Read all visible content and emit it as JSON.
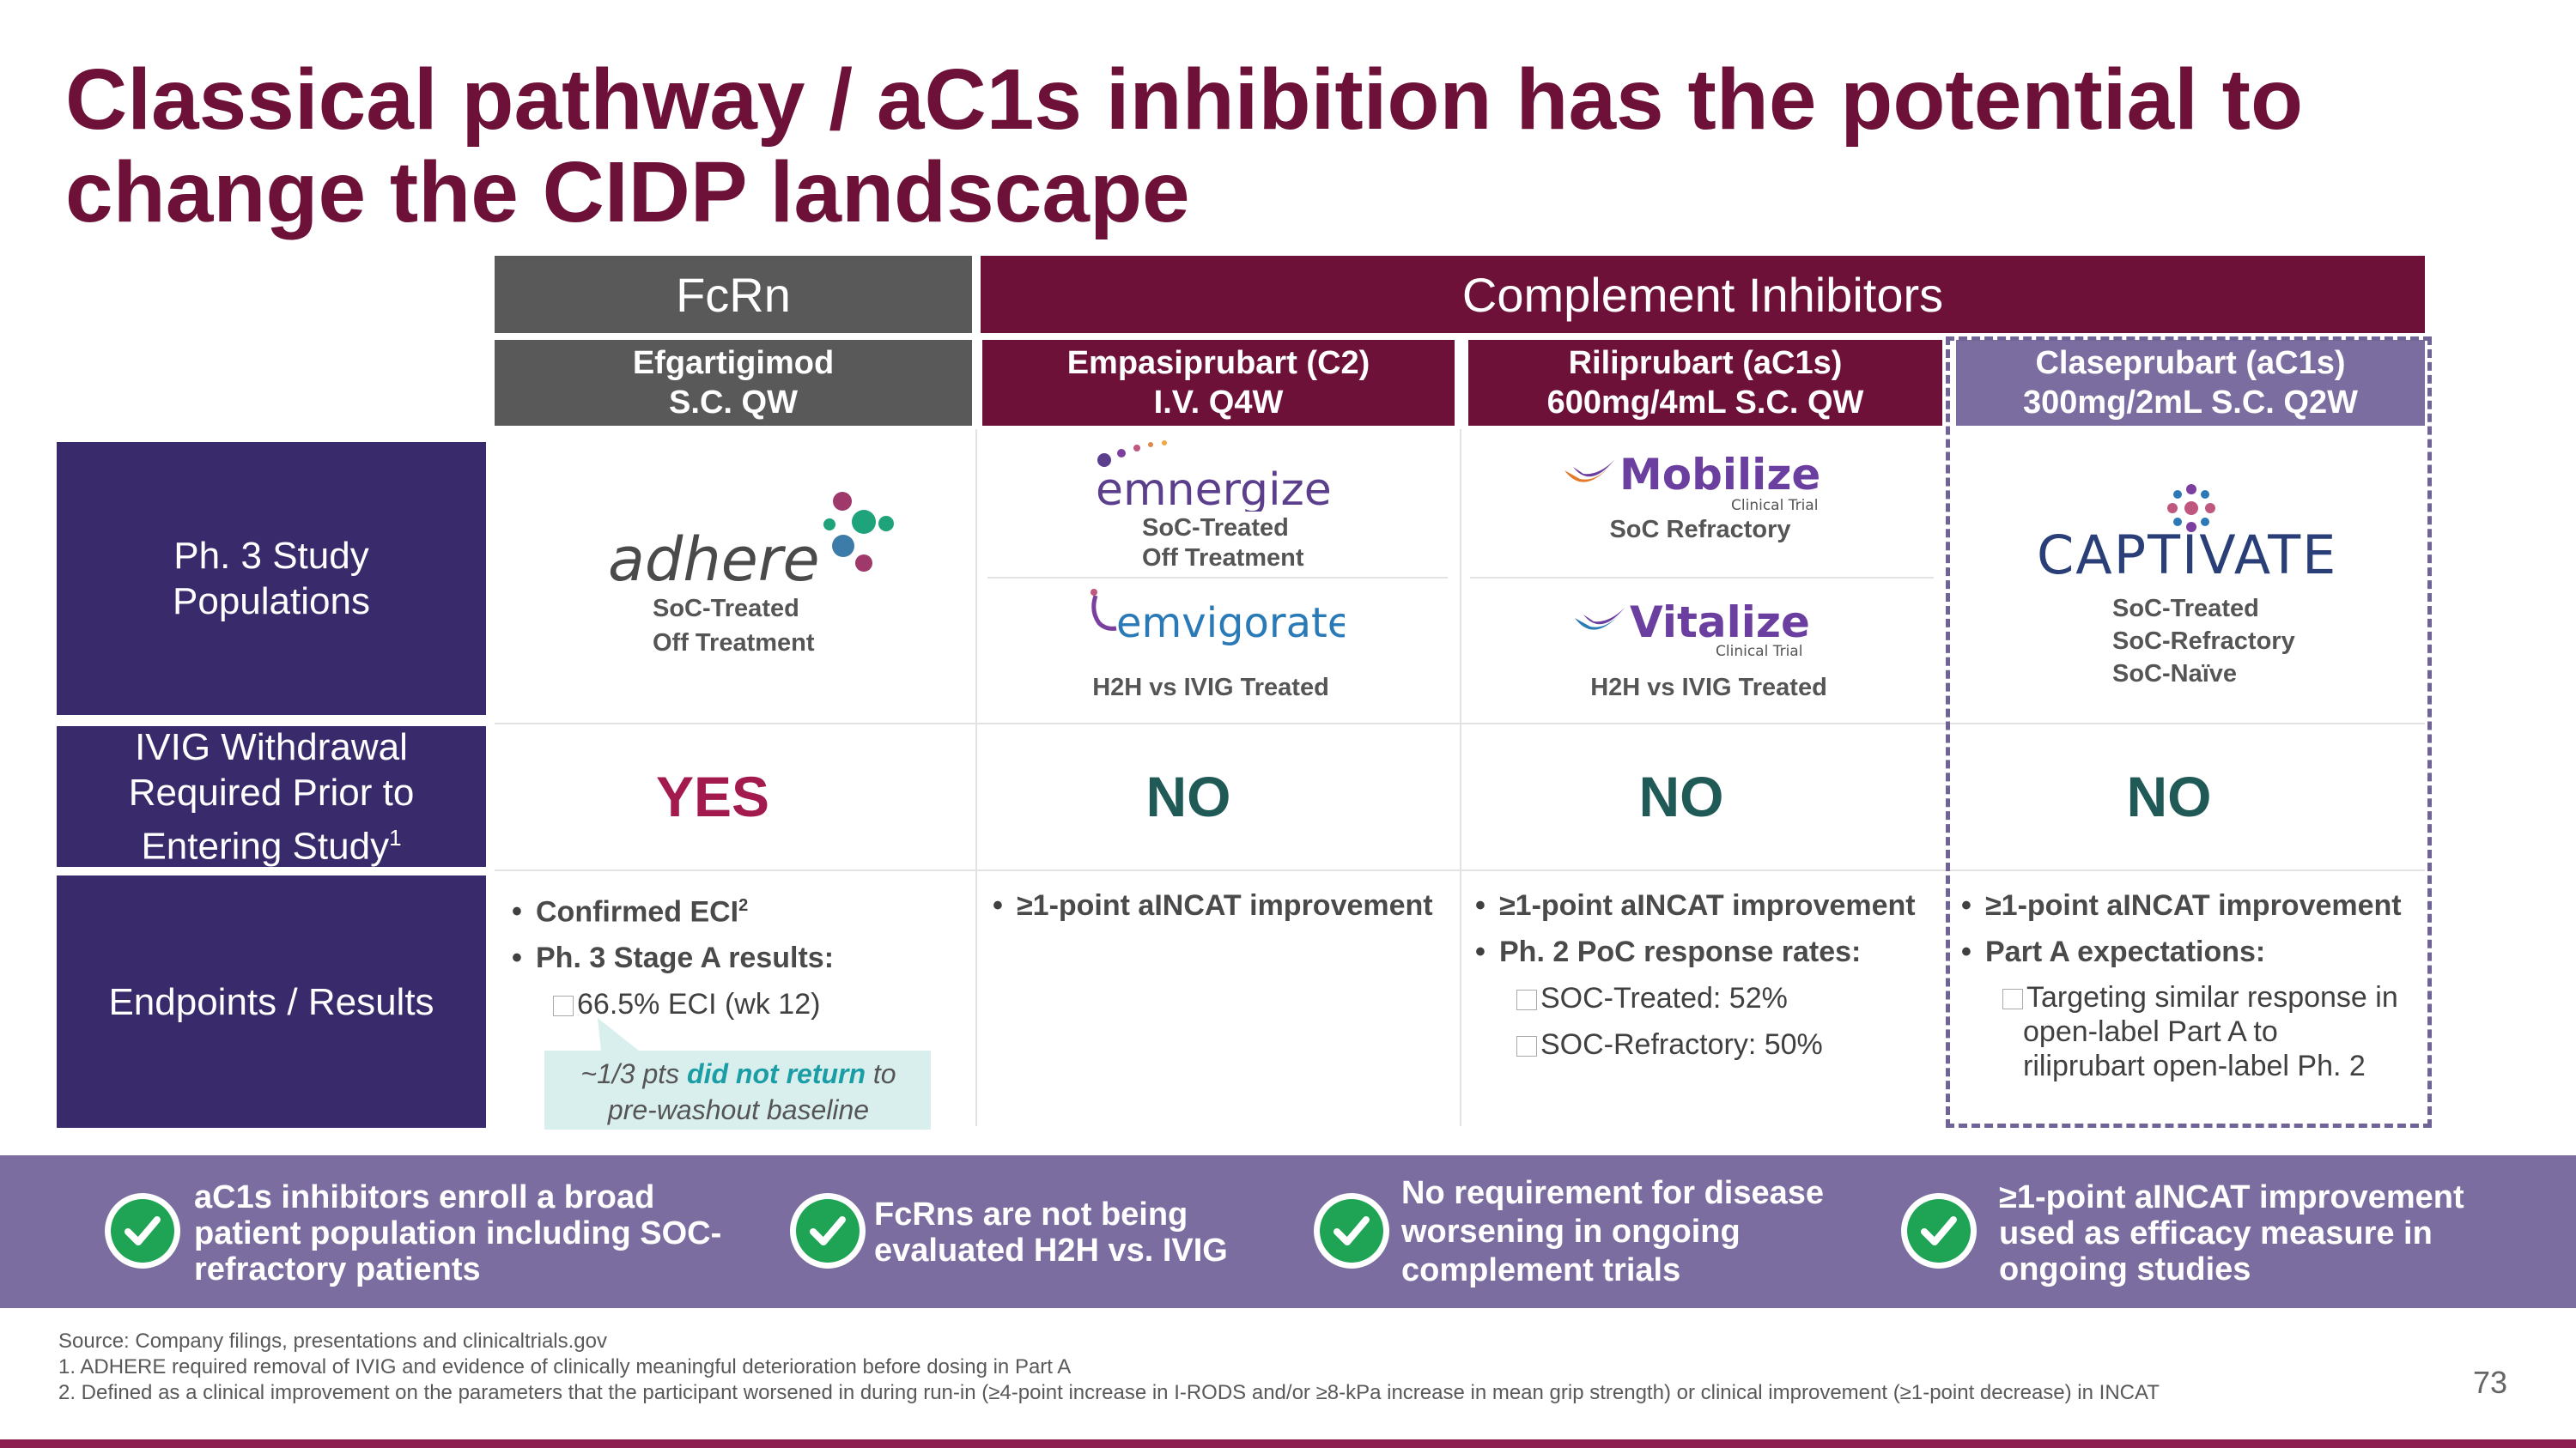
{
  "title": {
    "line1": "Classical pathway / aC1s inhibition has the potential to",
    "line2": "change the CIDP landscape"
  },
  "groups": {
    "fcrn": "FcRn",
    "complement": "Complement Inhibitors"
  },
  "columns": [
    {
      "name": "Efgartigimod",
      "regimen": "S.C. QW"
    },
    {
      "name": "Empasiprubart (C2)",
      "regimen": "I.V. Q4W"
    },
    {
      "name": "Riliprubart (aC1s)",
      "regimen": "600mg/4mL S.C. QW"
    },
    {
      "name": "Claseprubart (aC1s)",
      "regimen": "300mg/2mL S.C. Q2W"
    }
  ],
  "row_labels": {
    "populations": "Ph. 3 Study Populations",
    "ivig_a": "IVIG Withdrawal Required Prior to Entering Study",
    "ivig_sup": "1",
    "endpoints": "Endpoints / Results"
  },
  "studies": {
    "adhere": {
      "logo": "adhere",
      "line1": "SoC-Treated",
      "line2": "Off Treatment"
    },
    "emnergize": {
      "logo": "emnergize",
      "line1": "SoC-Treated",
      "line2": "Off Treatment"
    },
    "emvigorate": {
      "logo": "emvigorate",
      "line1": "H2H vs IVIG Treated"
    },
    "mobilize": {
      "logo": "Mobilize",
      "sub": "Clinical Trial",
      "line1": "SoC Refractory"
    },
    "vitalize": {
      "logo": "Vitalize",
      "sub": "Clinical Trial",
      "line1": "H2H vs IVIG Treated"
    },
    "captivate": {
      "logo": "CAPTIVATE",
      "line1": "SoC-Treated",
      "line2": "SoC-Refractory",
      "line3": "SoC-Naïve"
    }
  },
  "ivig": [
    "YES",
    "NO",
    "NO",
    "NO"
  ],
  "endpoints": {
    "c1": {
      "b1": "Confirmed ECI",
      "b1_sup": "2",
      "b2": "Ph. 3 Stage A results:",
      "s1": "66.5% ECI (wk 12)",
      "callout_pre": "~1/3 pts ",
      "callout_em": "did not return",
      "callout_post": " to",
      "callout_line2": "pre-washout baseline"
    },
    "c2": {
      "b1": "≥1-point aINCAT improvement"
    },
    "c3": {
      "b1": "≥1-point aINCAT improvement",
      "b2": "Ph. 2 PoC response rates:",
      "s1": "SOC-Treated: 52%",
      "s2": "SOC-Refractory: 50%"
    },
    "c4": {
      "b1": "≥1-point aINCAT improvement",
      "b2": "Part A expectations:",
      "s1": "Targeting similar response in",
      "s2": "open-label Part A to",
      "s3": "riliprubart open-label Ph. 2"
    }
  },
  "banner": [
    {
      "l1": "aC1s inhibitors enroll a broad",
      "l2": "patient population including SOC-",
      "l3": "refractory patients"
    },
    {
      "l1": "FcRns are not being",
      "l2": "evaluated H2H vs. IVIG"
    },
    {
      "l1": "No requirement for disease",
      "l2": "worsening in ongoing",
      "l3": "complement trials"
    },
    {
      "l1": "≥1-point aINCAT improvement",
      "l2": "used as efficacy measure in",
      "l3": "ongoing studies"
    }
  ],
  "footnotes": {
    "source": "Source: Company filings, presentations and clinicaltrials.gov",
    "n1": "1.   ADHERE required removal of IVIG and evidence of clinically meaningful deterioration before dosing in Part A",
    "n2": "2.   Defined as a clinical improvement on the parameters that the participant worsened in during run-in (≥4-point increase in I-RODS and/or ≥8-kPa increase in mean grip strength) or clinical improvement (≥1-point decrease) in INCAT"
  },
  "page_number": "73",
  "colors": {
    "title": "#6e1138",
    "fcrn": "#595959",
    "complement": "#6e1138",
    "label": "#392a6b",
    "claseprubart": "#7b6da0",
    "yes": "#a31a4e",
    "no": "#1f5a57",
    "check": "#1fa455"
  }
}
